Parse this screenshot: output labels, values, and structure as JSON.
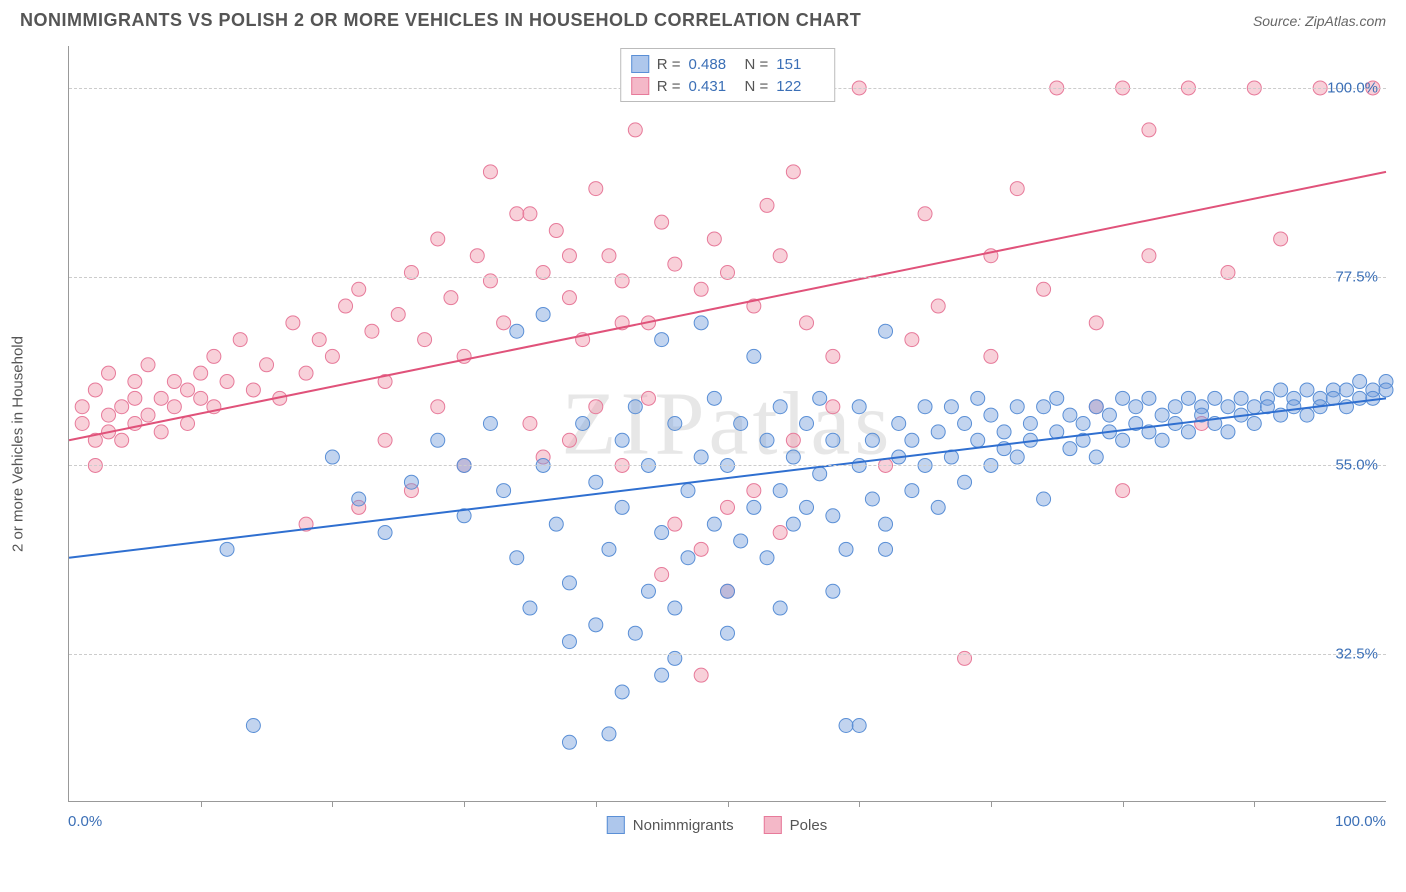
{
  "header": {
    "title": "NONIMMIGRANTS VS POLISH 2 OR MORE VEHICLES IN HOUSEHOLD CORRELATION CHART",
    "source_prefix": "Source: ",
    "source_name": "ZipAtlas.com"
  },
  "chart": {
    "type": "scatter",
    "ylabel": "2 or more Vehicles in Household",
    "watermark": "ZIPatlas",
    "background_color": "#ffffff",
    "grid_color": "#cccccc",
    "axis_color": "#999999",
    "tick_label_color": "#3b6fb6",
    "x_range": [
      0,
      100
    ],
    "y_range": [
      15,
      105
    ],
    "y_gridlines": [
      32.5,
      55.0,
      77.5,
      100.0
    ],
    "y_tick_labels": [
      "32.5%",
      "55.0%",
      "77.5%",
      "100.0%"
    ],
    "x_ticks_minor": [
      10,
      20,
      30,
      40,
      50,
      60,
      70,
      80,
      90
    ],
    "x_tick_labels": [
      {
        "pos": 0,
        "text": "0.0%"
      },
      {
        "pos": 100,
        "text": "100.0%"
      }
    ],
    "series": [
      {
        "name": "Nonimmigrants",
        "color_fill": "rgba(120,160,220,0.45)",
        "color_stroke": "#5a8fd6",
        "swatch_fill": "#aec7ec",
        "swatch_border": "#5a8fd6",
        "R": "0.488",
        "N": "151",
        "trend": {
          "x1": 0,
          "y1": 44,
          "x2": 100,
          "y2": 63,
          "color": "#2f6fd0",
          "width": 2
        },
        "marker_r": 7,
        "points": [
          [
            12,
            45
          ],
          [
            14,
            24
          ],
          [
            20,
            56
          ],
          [
            22,
            51
          ],
          [
            24,
            47
          ],
          [
            26,
            53
          ],
          [
            28,
            58
          ],
          [
            30,
            55
          ],
          [
            30,
            49
          ],
          [
            32,
            60
          ],
          [
            33,
            52
          ],
          [
            34,
            44
          ],
          [
            34,
            71
          ],
          [
            35,
            38
          ],
          [
            36,
            55
          ],
          [
            36,
            73
          ],
          [
            37,
            48
          ],
          [
            38,
            41
          ],
          [
            38,
            22
          ],
          [
            39,
            60
          ],
          [
            40,
            36
          ],
          [
            40,
            53
          ],
          [
            41,
            45
          ],
          [
            41,
            23
          ],
          [
            42,
            58
          ],
          [
            42,
            50
          ],
          [
            43,
            35
          ],
          [
            43,
            62
          ],
          [
            44,
            40
          ],
          [
            44,
            55
          ],
          [
            45,
            47
          ],
          [
            45,
            30
          ],
          [
            46,
            60
          ],
          [
            46,
            38
          ],
          [
            47,
            52
          ],
          [
            47,
            44
          ],
          [
            48,
            72
          ],
          [
            48,
            56
          ],
          [
            49,
            48
          ],
          [
            49,
            63
          ],
          [
            50,
            40
          ],
          [
            50,
            55
          ],
          [
            51,
            46
          ],
          [
            51,
            60
          ],
          [
            52,
            50
          ],
          [
            52,
            68
          ],
          [
            53,
            44
          ],
          [
            53,
            58
          ],
          [
            54,
            52
          ],
          [
            54,
            62
          ],
          [
            55,
            48
          ],
          [
            55,
            56
          ],
          [
            56,
            60
          ],
          [
            56,
            50
          ],
          [
            57,
            54
          ],
          [
            57,
            63
          ],
          [
            58,
            49
          ],
          [
            58,
            58
          ],
          [
            59,
            45
          ],
          [
            59,
            24
          ],
          [
            60,
            55
          ],
          [
            60,
            62
          ],
          [
            61,
            51
          ],
          [
            61,
            58
          ],
          [
            62,
            71
          ],
          [
            62,
            48
          ],
          [
            63,
            56
          ],
          [
            63,
            60
          ],
          [
            64,
            52
          ],
          [
            64,
            58
          ],
          [
            65,
            55
          ],
          [
            65,
            62
          ],
          [
            66,
            50
          ],
          [
            66,
            59
          ],
          [
            67,
            56
          ],
          [
            67,
            62
          ],
          [
            68,
            53
          ],
          [
            68,
            60
          ],
          [
            69,
            58
          ],
          [
            69,
            63
          ],
          [
            70,
            55
          ],
          [
            70,
            61
          ],
          [
            71,
            59
          ],
          [
            71,
            57
          ],
          [
            72,
            62
          ],
          [
            72,
            56
          ],
          [
            73,
            60
          ],
          [
            73,
            58
          ],
          [
            74,
            62
          ],
          [
            74,
            51
          ],
          [
            75,
            59
          ],
          [
            75,
            63
          ],
          [
            76,
            57
          ],
          [
            76,
            61
          ],
          [
            77,
            60
          ],
          [
            77,
            58
          ],
          [
            78,
            62
          ],
          [
            78,
            56
          ],
          [
            79,
            61
          ],
          [
            79,
            59
          ],
          [
            80,
            63
          ],
          [
            80,
            58
          ],
          [
            81,
            62
          ],
          [
            81,
            60
          ],
          [
            82,
            59
          ],
          [
            82,
            63
          ],
          [
            83,
            61
          ],
          [
            83,
            58
          ],
          [
            84,
            62
          ],
          [
            84,
            60
          ],
          [
            85,
            63
          ],
          [
            85,
            59
          ],
          [
            86,
            62
          ],
          [
            86,
            61
          ],
          [
            87,
            60
          ],
          [
            87,
            63
          ],
          [
            88,
            62
          ],
          [
            88,
            59
          ],
          [
            89,
            63
          ],
          [
            89,
            61
          ],
          [
            90,
            62
          ],
          [
            90,
            60
          ],
          [
            91,
            63
          ],
          [
            91,
            62
          ],
          [
            92,
            61
          ],
          [
            92,
            64
          ],
          [
            93,
            63
          ],
          [
            93,
            62
          ],
          [
            94,
            64
          ],
          [
            94,
            61
          ],
          [
            95,
            63
          ],
          [
            95,
            62
          ],
          [
            96,
            64
          ],
          [
            96,
            63
          ],
          [
            97,
            62
          ],
          [
            97,
            64
          ],
          [
            98,
            63
          ],
          [
            98,
            65
          ],
          [
            99,
            64
          ],
          [
            99,
            63
          ],
          [
            100,
            65
          ],
          [
            100,
            64
          ],
          [
            38,
            34
          ],
          [
            42,
            28
          ],
          [
            46,
            32
          ],
          [
            50,
            35
          ],
          [
            54,
            38
          ],
          [
            58,
            40
          ],
          [
            62,
            45
          ],
          [
            60,
            24
          ],
          [
            45,
            70
          ]
        ]
      },
      {
        "name": "Poles",
        "color_fill": "rgba(240,150,170,0.45)",
        "color_stroke": "#e77a9a",
        "swatch_fill": "#f4b8c8",
        "swatch_border": "#e77a9a",
        "R": "0.431",
        "N": "122",
        "trend": {
          "x1": 0,
          "y1": 58,
          "x2": 100,
          "y2": 90,
          "color": "#e0527a",
          "width": 2
        },
        "marker_r": 7,
        "points": [
          [
            1,
            60
          ],
          [
            1,
            62
          ],
          [
            2,
            58
          ],
          [
            2,
            64
          ],
          [
            2,
            55
          ],
          [
            3,
            61
          ],
          [
            3,
            59
          ],
          [
            3,
            66
          ],
          [
            4,
            62
          ],
          [
            4,
            58
          ],
          [
            5,
            65
          ],
          [
            5,
            60
          ],
          [
            5,
            63
          ],
          [
            6,
            61
          ],
          [
            6,
            67
          ],
          [
            7,
            63
          ],
          [
            7,
            59
          ],
          [
            8,
            65
          ],
          [
            8,
            62
          ],
          [
            9,
            64
          ],
          [
            9,
            60
          ],
          [
            10,
            66
          ],
          [
            10,
            63
          ],
          [
            11,
            62
          ],
          [
            11,
            68
          ],
          [
            12,
            65
          ],
          [
            13,
            70
          ],
          [
            14,
            64
          ],
          [
            15,
            67
          ],
          [
            16,
            63
          ],
          [
            17,
            72
          ],
          [
            18,
            66
          ],
          [
            19,
            70
          ],
          [
            20,
            68
          ],
          [
            21,
            74
          ],
          [
            22,
            76
          ],
          [
            23,
            71
          ],
          [
            24,
            65
          ],
          [
            25,
            73
          ],
          [
            26,
            78
          ],
          [
            27,
            70
          ],
          [
            28,
            82
          ],
          [
            29,
            75
          ],
          [
            30,
            68
          ],
          [
            31,
            80
          ],
          [
            32,
            77
          ],
          [
            33,
            72
          ],
          [
            34,
            85
          ],
          [
            35,
            60
          ],
          [
            36,
            78
          ],
          [
            37,
            83
          ],
          [
            38,
            75
          ],
          [
            39,
            70
          ],
          [
            40,
            88
          ],
          [
            41,
            80
          ],
          [
            42,
            77
          ],
          [
            43,
            95
          ],
          [
            44,
            72
          ],
          [
            45,
            84
          ],
          [
            46,
            79
          ],
          [
            47,
            100
          ],
          [
            48,
            76
          ],
          [
            49,
            82
          ],
          [
            50,
            78
          ],
          [
            51,
            100
          ],
          [
            52,
            74
          ],
          [
            53,
            86
          ],
          [
            54,
            80
          ],
          [
            55,
            90
          ],
          [
            56,
            72
          ],
          [
            48,
            45
          ],
          [
            50,
            50
          ],
          [
            42,
            55
          ],
          [
            46,
            48
          ],
          [
            52,
            52
          ],
          [
            38,
            58
          ],
          [
            54,
            47
          ],
          [
            44,
            63
          ],
          [
            40,
            62
          ],
          [
            36,
            56
          ],
          [
            30,
            55
          ],
          [
            26,
            52
          ],
          [
            22,
            50
          ],
          [
            18,
            48
          ],
          [
            48,
            30
          ],
          [
            45,
            42
          ],
          [
            50,
            40
          ],
          [
            58,
            68
          ],
          [
            60,
            100
          ],
          [
            65,
            85
          ],
          [
            70,
            80
          ],
          [
            72,
            88
          ],
          [
            75,
            100
          ],
          [
            78,
            62
          ],
          [
            80,
            100
          ],
          [
            82,
            95
          ],
          [
            85,
            100
          ],
          [
            88,
            78
          ],
          [
            90,
            100
          ],
          [
            92,
            82
          ],
          [
            68,
            32
          ],
          [
            62,
            55
          ],
          [
            55,
            58
          ],
          [
            58,
            62
          ],
          [
            64,
            70
          ],
          [
            66,
            74
          ],
          [
            70,
            68
          ],
          [
            74,
            76
          ],
          [
            78,
            72
          ],
          [
            82,
            80
          ],
          [
            80,
            52
          ],
          [
            86,
            60
          ],
          [
            95,
            100
          ],
          [
            99,
            100
          ],
          [
            45,
            100
          ],
          [
            50,
            100
          ],
          [
            42,
            72
          ],
          [
            38,
            80
          ],
          [
            35,
            85
          ],
          [
            32,
            90
          ],
          [
            28,
            62
          ],
          [
            24,
            58
          ]
        ]
      }
    ],
    "legend_bottom": [
      {
        "label": "Nonimmigrants",
        "series": 0
      },
      {
        "label": "Poles",
        "series": 1
      }
    ]
  }
}
